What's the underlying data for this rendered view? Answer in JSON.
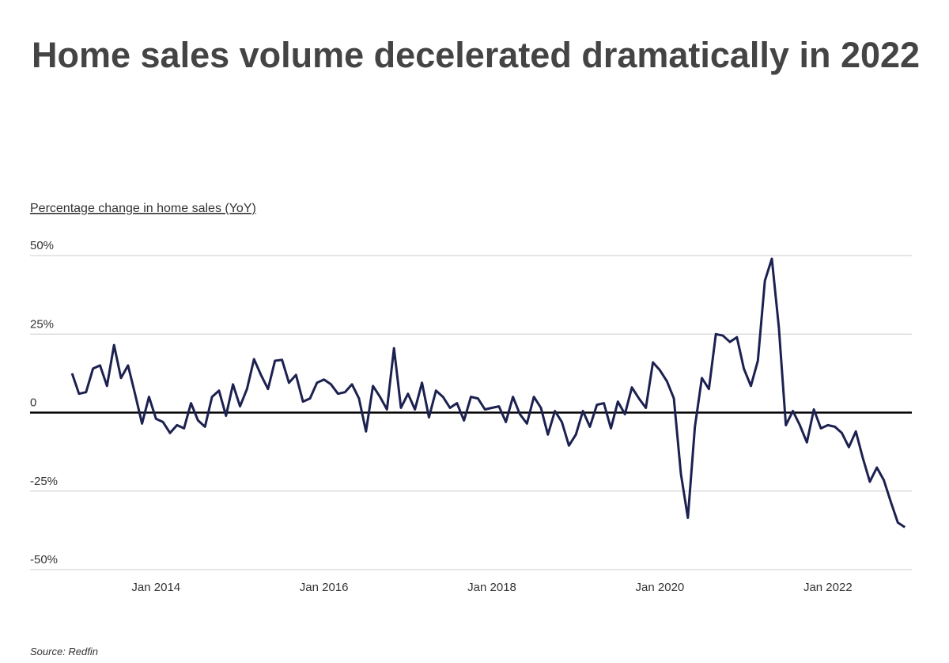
{
  "chart_data": {
    "type": "line",
    "title": "Home sales volume decelerated dramatically in 2022",
    "y_label": "Percentage change in home sales (YoY)",
    "source": "Source: Redfin",
    "x": [
      "2013-01",
      "2013-02",
      "2013-03",
      "2013-04",
      "2013-05",
      "2013-06",
      "2013-07",
      "2013-08",
      "2013-09",
      "2013-10",
      "2013-11",
      "2013-12",
      "2014-01",
      "2014-02",
      "2014-03",
      "2014-04",
      "2014-05",
      "2014-06",
      "2014-07",
      "2014-08",
      "2014-09",
      "2014-10",
      "2014-11",
      "2014-12",
      "2015-01",
      "2015-02",
      "2015-03",
      "2015-04",
      "2015-05",
      "2015-06",
      "2015-07",
      "2015-08",
      "2015-09",
      "2015-10",
      "2015-11",
      "2015-12",
      "2016-01",
      "2016-02",
      "2016-03",
      "2016-04",
      "2016-05",
      "2016-06",
      "2016-07",
      "2016-08",
      "2016-09",
      "2016-10",
      "2016-11",
      "2016-12",
      "2017-01",
      "2017-02",
      "2017-03",
      "2017-04",
      "2017-05",
      "2017-06",
      "2017-07",
      "2017-08",
      "2017-09",
      "2017-10",
      "2017-11",
      "2017-12",
      "2018-01",
      "2018-02",
      "2018-03",
      "2018-04",
      "2018-05",
      "2018-06",
      "2018-07",
      "2018-08",
      "2018-09",
      "2018-10",
      "2018-11",
      "2018-12",
      "2019-01",
      "2019-02",
      "2019-03",
      "2019-04",
      "2019-05",
      "2019-06",
      "2019-07",
      "2019-08",
      "2019-09",
      "2019-10",
      "2019-11",
      "2019-12",
      "2020-01",
      "2020-02",
      "2020-03",
      "2020-04",
      "2020-05",
      "2020-06",
      "2020-07",
      "2020-08",
      "2020-09",
      "2020-10",
      "2020-11",
      "2020-12",
      "2021-01",
      "2021-02",
      "2021-03",
      "2021-04",
      "2021-05",
      "2021-06",
      "2021-07",
      "2021-08",
      "2021-09",
      "2021-10",
      "2021-11",
      "2021-12",
      "2022-01",
      "2022-02",
      "2022-03",
      "2022-04",
      "2022-05",
      "2022-06",
      "2022-07",
      "2022-08",
      "2022-09",
      "2022-10",
      "2022-11",
      "2022-12"
    ],
    "series": [
      {
        "name": "Home sales YoY",
        "color": "#1c2150",
        "values": [
          12.5,
          6,
          6.5,
          14,
          15,
          8.5,
          21.5,
          11,
          15,
          6,
          -3.5,
          5,
          -2,
          -3,
          -6.5,
          -4,
          -5,
          3,
          -2.5,
          -4.5,
          5,
          7,
          -1,
          9,
          2,
          7.5,
          17,
          12,
          7.5,
          16.5,
          16.8,
          9.5,
          12,
          3.5,
          4.5,
          9.5,
          10.5,
          9,
          6,
          6.5,
          9,
          4.5,
          -6,
          8.5,
          5,
          1,
          20.5,
          1.5,
          6,
          1,
          9.5,
          -1.5,
          7,
          5,
          1.5,
          3,
          -2.5,
          5,
          4.5,
          1,
          1.5,
          2,
          -3,
          5,
          -0.5,
          -3.5,
          5,
          1.5,
          -7,
          0.5,
          -3,
          -10.5,
          -7,
          0.5,
          -4.5,
          2.5,
          3,
          -5,
          3.5,
          -0.5,
          8,
          4.5,
          1.5,
          16,
          13.5,
          10,
          4.5,
          -19.5,
          -33.5,
          -4.5,
          11,
          7.5,
          25,
          24.5,
          22.5,
          24,
          14,
          8.5,
          16.5,
          42,
          49,
          27,
          -4,
          0.5,
          -4,
          -9.5,
          1,
          -5,
          -4,
          -4.5,
          -6.5,
          -11,
          -6,
          -14.5,
          -22,
          -17.5,
          -21.5,
          -28.5,
          -35,
          -36.5
        ]
      }
    ],
    "xlim": [
      "2012-07",
      "2023-01"
    ],
    "xticks": [
      {
        "value": "2014-01",
        "label": "Jan 2014"
      },
      {
        "value": "2016-01",
        "label": "Jan 2016"
      },
      {
        "value": "2018-01",
        "label": "Jan 2018"
      },
      {
        "value": "2020-01",
        "label": "Jan 2020"
      },
      {
        "value": "2022-01",
        "label": "Jan 2022"
      }
    ],
    "ylim": [
      -50,
      50
    ],
    "yticks": [
      {
        "value": 50,
        "label": "50%"
      },
      {
        "value": 25,
        "label": "25%"
      },
      0,
      {
        "value": -25,
        "label": "-25%"
      },
      {
        "value": -50,
        "label": "-50%"
      }
    ],
    "grid": true
  }
}
